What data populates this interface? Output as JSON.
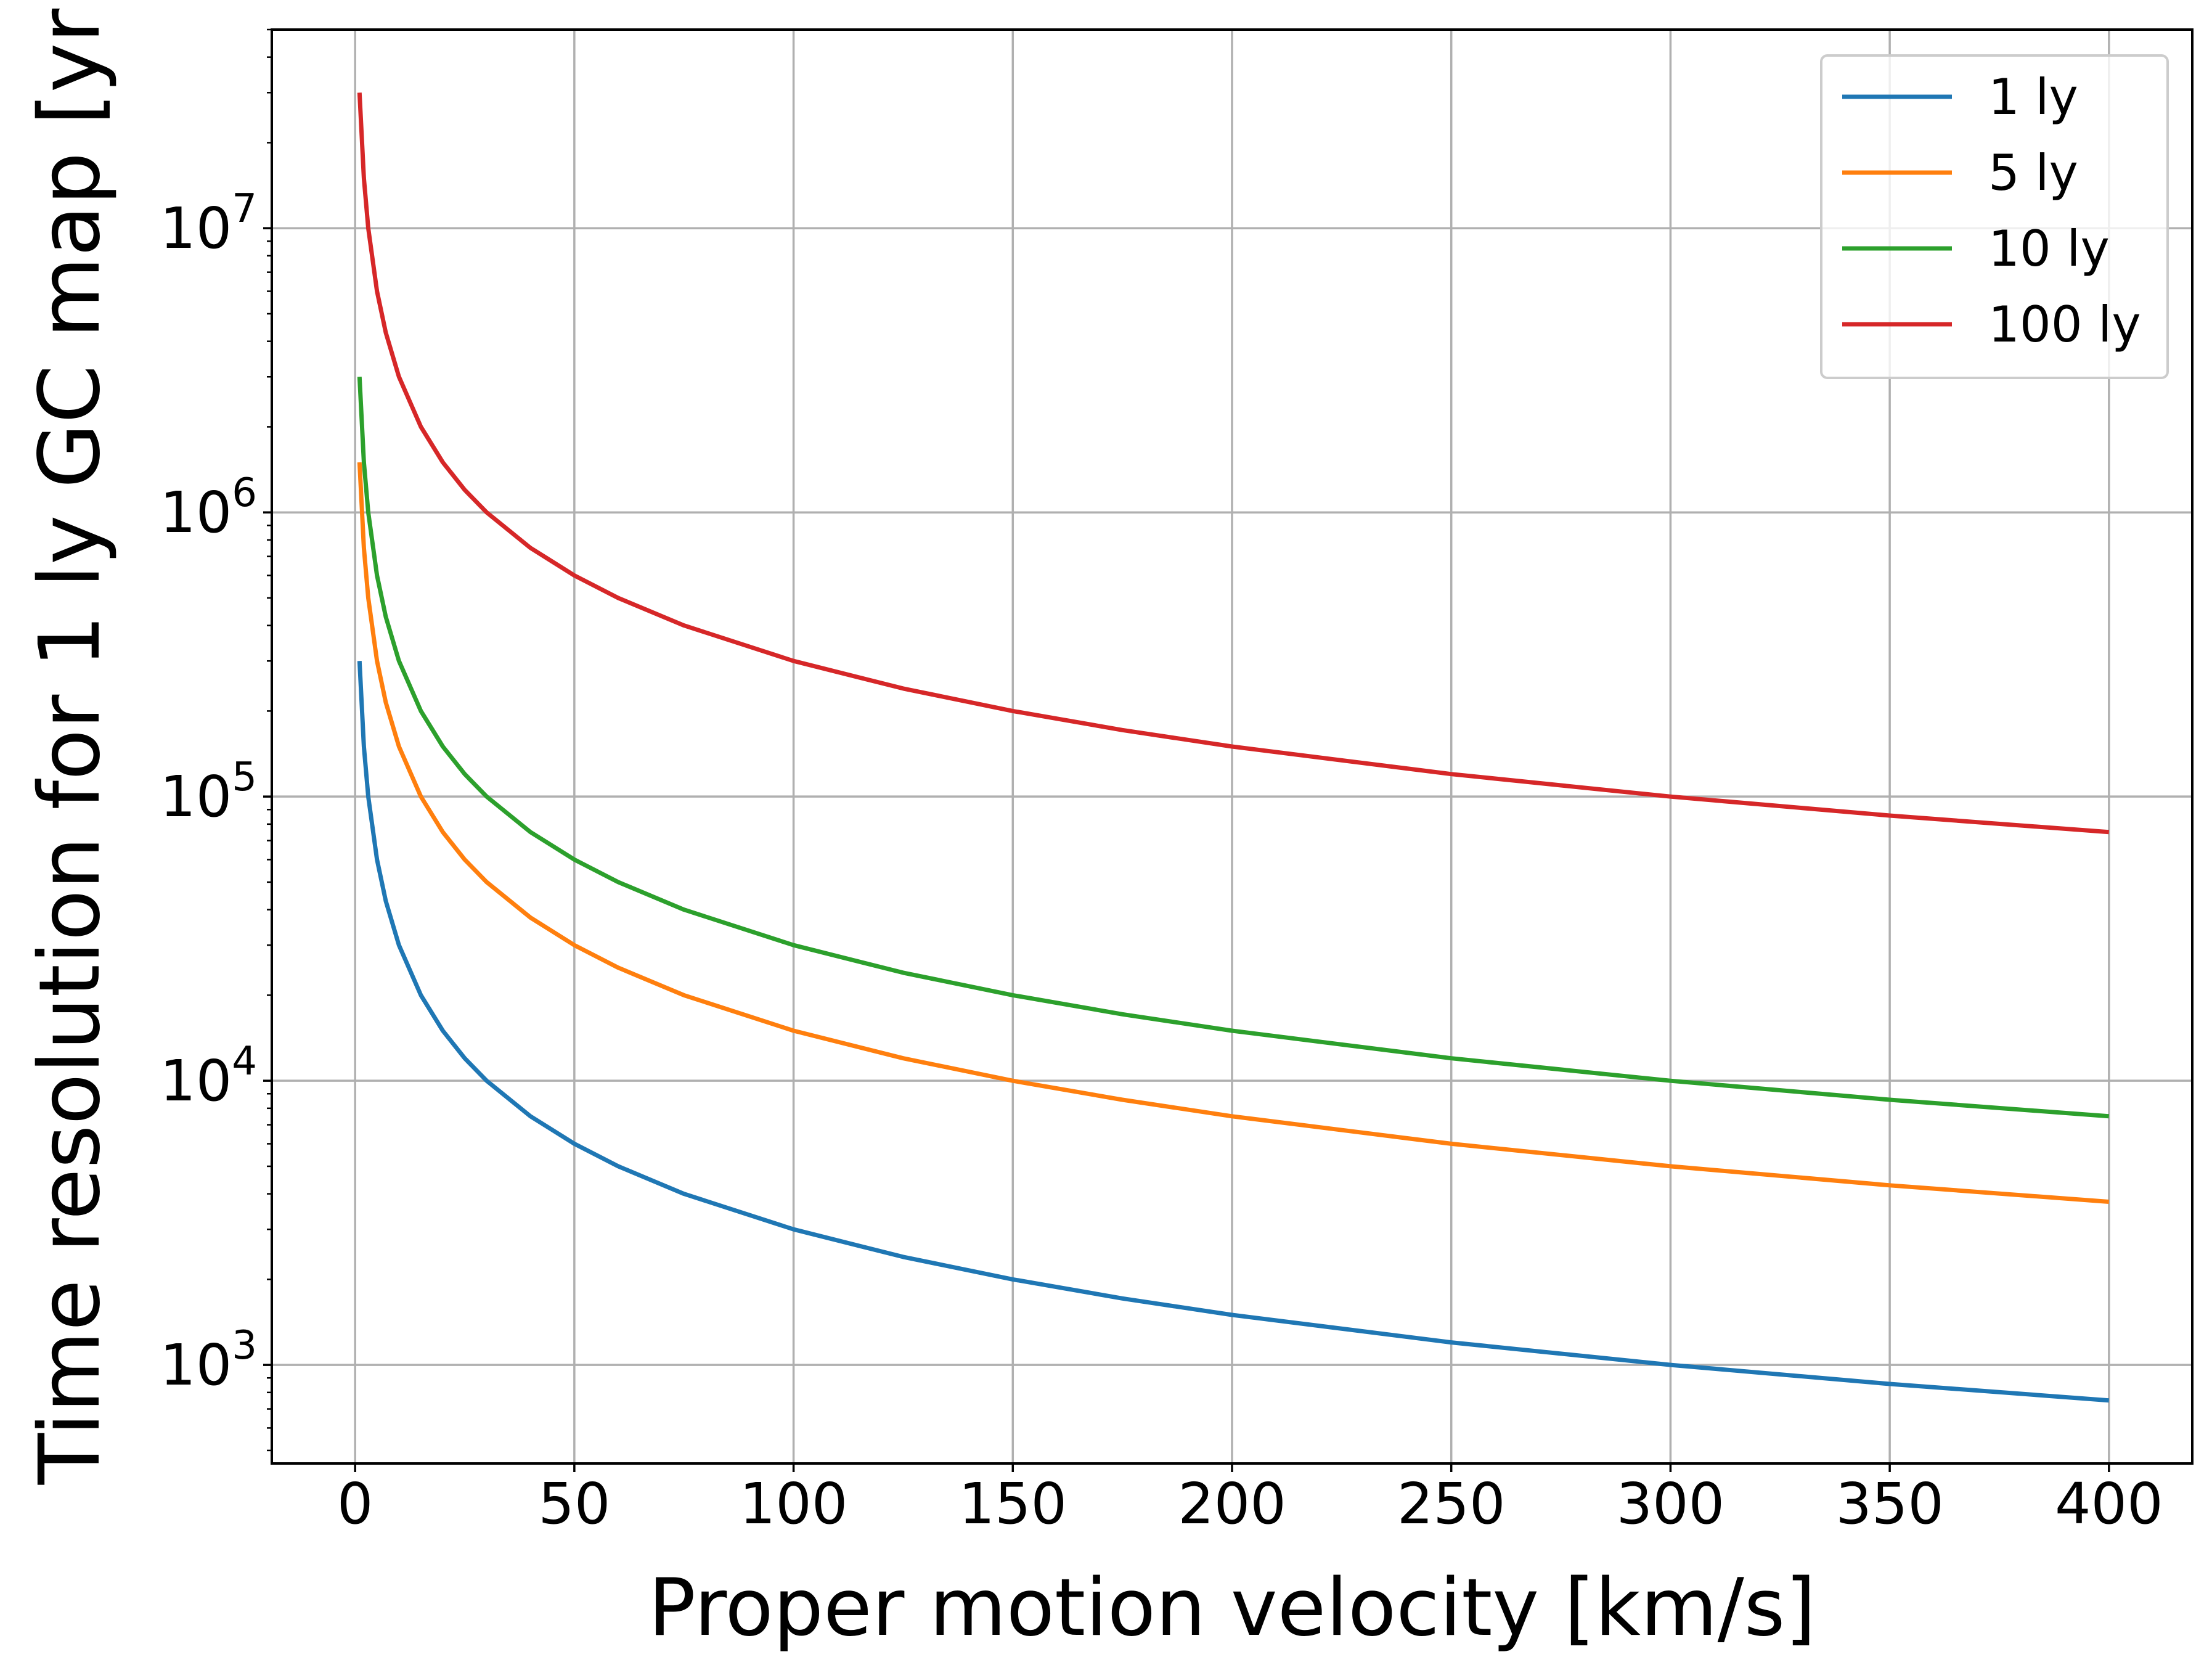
{
  "chart_data": {
    "type": "line",
    "title": "",
    "xlabel": "Proper motion velocity [km/s]",
    "ylabel": "Time resolution for 1 ly GC map [yr",
    "xlim": [
      -19,
      419
    ],
    "ylim": [
      450,
      50000000
    ],
    "y_scale": "log",
    "grid": true,
    "legend_position": "top-right",
    "x_ticks": [
      0,
      50,
      100,
      150,
      200,
      250,
      300,
      350,
      400
    ],
    "y_ticks": [
      1000,
      10000,
      100000,
      1000000,
      10000000
    ],
    "y_tick_labels": [
      {
        "base": "10",
        "exp": "3"
      },
      {
        "base": "10",
        "exp": "4"
      },
      {
        "base": "10",
        "exp": "5"
      },
      {
        "base": "10",
        "exp": "6"
      },
      {
        "base": "10",
        "exp": "7"
      }
    ],
    "x": [
      1,
      2,
      3,
      5,
      7,
      10,
      15,
      20,
      25,
      30,
      40,
      50,
      60,
      75,
      100,
      125,
      150,
      175,
      200,
      250,
      300,
      350,
      400
    ],
    "series": [
      {
        "name": "1 ly",
        "color": "#1f77b4",
        "values": [
          300000,
          150000,
          100000,
          60000,
          42860,
          30000,
          20000,
          15000,
          12000,
          10000,
          7500,
          6000,
          5000,
          4000,
          3000,
          2400,
          2000,
          1714,
          1500,
          1200,
          1000,
          857,
          750
        ]
      },
      {
        "name": "5 ly",
        "color": "#ff7f0e",
        "values": [
          1500000,
          750000,
          500000,
          300000,
          214300,
          150000,
          100000,
          75000,
          60000,
          50000,
          37500,
          30000,
          25000,
          20000,
          15000,
          12000,
          10000,
          8571,
          7500,
          6000,
          5000,
          4286,
          3750
        ]
      },
      {
        "name": "10 ly",
        "color": "#2ca02c",
        "values": [
          3000000,
          1500000,
          1000000,
          600000,
          428600,
          300000,
          200000,
          150000,
          120000,
          100000,
          75000,
          60000,
          50000,
          40000,
          30000,
          24000,
          20000,
          17140,
          15000,
          12000,
          10000,
          8571,
          7500
        ]
      },
      {
        "name": "100 ly",
        "color": "#d62728",
        "values": [
          30000000,
          15000000,
          10000000,
          6000000,
          4286000,
          3000000,
          2000000,
          1500000,
          1200000,
          1000000,
          750000,
          600000,
          500000,
          400000,
          300000,
          240000,
          200000,
          171400,
          150000,
          120000,
          100000,
          85710,
          75000
        ]
      }
    ]
  }
}
